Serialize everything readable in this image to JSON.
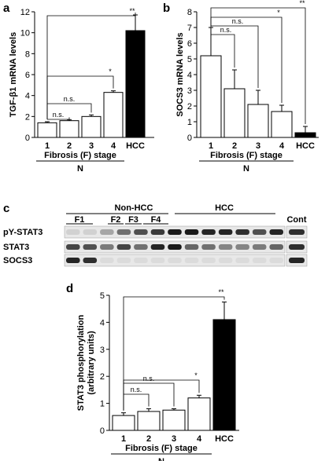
{
  "chart_data": [
    {
      "panel": "a",
      "type": "bar",
      "ylabel": "TGF-β1 mRNA levels",
      "ylim": [
        0,
        12
      ],
      "yticks": [
        0,
        2,
        4,
        6,
        8,
        10,
        12
      ],
      "categories": [
        "1",
        "2",
        "3",
        "4",
        "HCC"
      ],
      "values": [
        1.4,
        1.6,
        2.0,
        4.3,
        10.2
      ],
      "errors": [
        0.1,
        0.1,
        0.15,
        0.15,
        1.5
      ],
      "fills": [
        "#ffffff",
        "#ffffff",
        "#ffffff",
        "#ffffff",
        "#000000"
      ],
      "group_label": "Fibrosis (F) stage",
      "n_label": "N",
      "comparisons": [
        {
          "from": "1",
          "to": "2",
          "label": "n.s."
        },
        {
          "from": "1",
          "to": "3",
          "label": "n.s."
        },
        {
          "from": "1",
          "to": "4",
          "label": "*"
        },
        {
          "from": "1",
          "to": "HCC",
          "label": "**"
        }
      ]
    },
    {
      "panel": "b",
      "type": "bar",
      "ylabel": "SOCS3 mRNA levels",
      "ylim": [
        0,
        8
      ],
      "yticks": [
        0,
        1,
        2,
        3,
        4,
        5,
        6,
        7,
        8
      ],
      "categories": [
        "1",
        "2",
        "3",
        "4",
        "HCC"
      ],
      "values": [
        5.2,
        3.1,
        2.1,
        1.65,
        0.3
      ],
      "errors": [
        1.8,
        1.2,
        0.9,
        0.4,
        0.4
      ],
      "fills": [
        "#ffffff",
        "#ffffff",
        "#ffffff",
        "#ffffff",
        "#000000"
      ],
      "group_label": "Fibrosis (F) stage",
      "n_label": "N",
      "comparisons": [
        {
          "from": "1",
          "to": "2",
          "label": "n.s."
        },
        {
          "from": "1",
          "to": "3",
          "label": "n.s."
        },
        {
          "from": "1",
          "to": "4",
          "label": "*"
        },
        {
          "from": "1",
          "to": "HCC",
          "label": "**"
        }
      ]
    },
    {
      "panel": "d",
      "type": "bar",
      "ylabel": "STAT3 phosphorylation",
      "ylabel2": "(arbitrary units)",
      "ylim": [
        0,
        5
      ],
      "yticks": [
        0,
        1,
        2,
        3,
        4,
        5
      ],
      "categories": [
        "1",
        "2",
        "3",
        "4",
        "HCC"
      ],
      "values": [
        0.55,
        0.7,
        0.75,
        1.2,
        4.1
      ],
      "errors": [
        0.1,
        0.1,
        0.05,
        0.1,
        0.65
      ],
      "fills": [
        "#ffffff",
        "#ffffff",
        "#ffffff",
        "#ffffff",
        "#000000"
      ],
      "group_label": "Fibrosis (F) stage",
      "n_label": "N",
      "comparisons": [
        {
          "from": "1",
          "to": "2",
          "label": "n.s."
        },
        {
          "from": "1",
          "to": "3",
          "label": "n.s."
        },
        {
          "from": "1",
          "to": "4",
          "label": "*"
        },
        {
          "from": "1",
          "to": "HCC",
          "label": "**"
        }
      ]
    }
  ],
  "blot": {
    "panel": "c",
    "group_non_hcc": "Non-HCC",
    "group_hcc": "HCC",
    "stages": [
      "F1",
      "F2",
      "F3",
      "F4"
    ],
    "cont_label": "Cont",
    "rows": [
      {
        "label": "pY-STAT3",
        "intensities": [
          0.1,
          0.1,
          0.3,
          0.55,
          0.7,
          0.8,
          0.95,
          0.95,
          0.9,
          0.9,
          0.85,
          0.7,
          0.9,
          0.85
        ]
      },
      {
        "label": "STAT3",
        "intensities": [
          0.75,
          0.7,
          0.5,
          0.75,
          0.55,
          0.9,
          0.95,
          0.6,
          0.55,
          0.45,
          0.45,
          0.5,
          0.6,
          0.85
        ]
      },
      {
        "label": "SOCS3",
        "intensities": [
          0.9,
          0.85,
          0.05,
          0.05,
          0.05,
          0.05,
          0.05,
          0.05,
          0.05,
          0.05,
          0.05,
          0.05,
          0.05,
          0.9
        ]
      }
    ]
  }
}
